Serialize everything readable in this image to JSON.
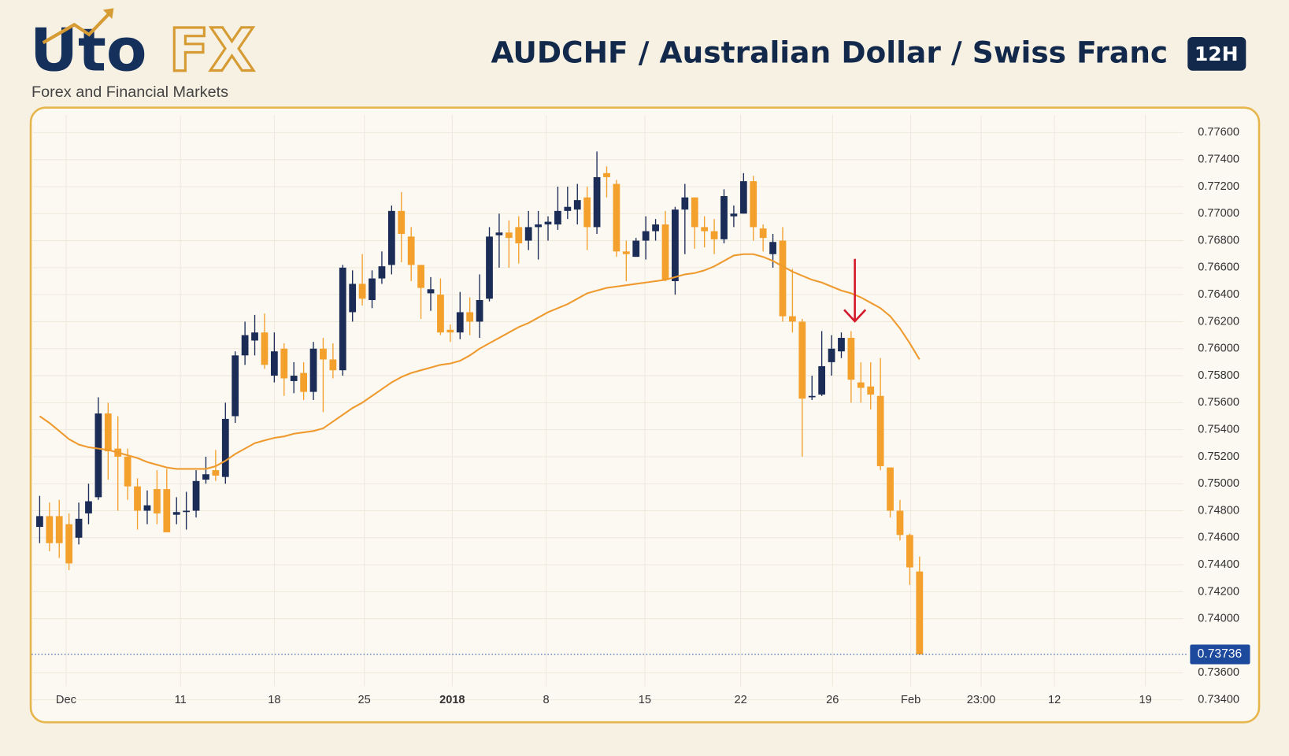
{
  "header": {
    "logo_left": "Uto",
    "logo_right": "FX",
    "tagline": "Forex and Financial Markets"
  },
  "chart_data": {
    "type": "candlestick",
    "title": "AUDCHF / Australian Dollar / Swiss Franc",
    "timeframe": "12H",
    "up_color": "#1b2d57",
    "down_color": "#f3a02c",
    "grid": true,
    "open": [
      0.7468,
      0.7476,
      0.7476,
      0.747,
      0.746,
      0.7478,
      0.749,
      0.7552,
      0.7526,
      0.752,
      0.7498,
      0.748,
      0.7496,
      0.7496,
      0.7477,
      0.7479,
      0.748,
      0.7503,
      0.751,
      0.7505,
      0.755,
      0.7595,
      0.7606,
      0.7612,
      0.758,
      0.76,
      0.7576,
      0.7582,
      0.7568,
      0.76,
      0.7592,
      0.7584,
      0.7627,
      0.7648,
      0.7636,
      0.7652,
      0.7662,
      0.7702,
      0.7683,
      0.7662,
      0.7641,
      0.764,
      0.7614,
      0.7612,
      0.7627,
      0.762,
      0.7637,
      0.7684,
      0.7686,
      0.769,
      0.768,
      0.769,
      0.7692,
      0.7692,
      0.7702,
      0.7703,
      0.7712,
      0.769,
      0.773,
      0.7722,
      0.7672,
      0.7668,
      0.768,
      0.7687,
      0.7692,
      0.765,
      0.7703,
      0.7712,
      0.769,
      0.7687,
      0.7681,
      0.7698,
      0.77,
      0.7724,
      0.7689,
      0.767,
      0.768,
      0.7624,
      0.762,
      0.7564,
      0.7566,
      0.759,
      0.7598,
      0.7608,
      0.7575,
      0.7572,
      0.7565,
      0.7512,
      0.748,
      0.7462,
      0.7435
    ],
    "high": [
      0.7491,
      0.7486,
      0.7488,
      0.7478,
      0.7486,
      0.75,
      0.7564,
      0.756,
      0.755,
      0.7526,
      0.7504,
      0.7495,
      0.751,
      0.7511,
      0.749,
      0.7494,
      0.751,
      0.752,
      0.7525,
      0.756,
      0.7598,
      0.762,
      0.7625,
      0.7626,
      0.7612,
      0.7604,
      0.759,
      0.759,
      0.7605,
      0.7608,
      0.7604,
      0.7662,
      0.7658,
      0.767,
      0.7658,
      0.7672,
      0.7706,
      0.7716,
      0.769,
      0.7662,
      0.7653,
      0.7652,
      0.7618,
      0.7642,
      0.7638,
      0.7655,
      0.769,
      0.77,
      0.7695,
      0.7698,
      0.7702,
      0.7702,
      0.7698,
      0.772,
      0.772,
      0.7722,
      0.772,
      0.7746,
      0.7735,
      0.7725,
      0.768,
      0.7682,
      0.7698,
      0.7696,
      0.7702,
      0.7705,
      0.7722,
      0.7712,
      0.7698,
      0.7696,
      0.7718,
      0.7706,
      0.773,
      0.7728,
      0.7692,
      0.7685,
      0.769,
      0.7659,
      0.7622,
      0.758,
      0.7613,
      0.761,
      0.7612,
      0.7613,
      0.759,
      0.759,
      0.7593,
      0.7512,
      0.7488,
      0.7463,
      0.7446
    ],
    "low": [
      0.7456,
      0.745,
      0.7445,
      0.7436,
      0.7455,
      0.747,
      0.7488,
      0.7503,
      0.748,
      0.7488,
      0.7466,
      0.747,
      0.747,
      0.7464,
      0.747,
      0.7466,
      0.7475,
      0.75,
      0.7502,
      0.75,
      0.7545,
      0.7588,
      0.7595,
      0.7585,
      0.7575,
      0.7565,
      0.7567,
      0.7562,
      0.7562,
      0.7553,
      0.7578,
      0.758,
      0.762,
      0.7632,
      0.763,
      0.7648,
      0.7655,
      0.7664,
      0.765,
      0.7622,
      0.7628,
      0.761,
      0.7605,
      0.7607,
      0.761,
      0.7608,
      0.7635,
      0.766,
      0.766,
      0.7663,
      0.7673,
      0.7666,
      0.768,
      0.7688,
      0.7696,
      0.7692,
      0.7673,
      0.7685,
      0.7712,
      0.7668,
      0.765,
      0.7668,
      0.7666,
      0.768,
      0.765,
      0.764,
      0.767,
      0.7674,
      0.7675,
      0.767,
      0.7678,
      0.769,
      0.77,
      0.768,
      0.7672,
      0.766,
      0.762,
      0.7612,
      0.752,
      0.7562,
      0.7565,
      0.758,
      0.7593,
      0.756,
      0.756,
      0.7555,
      0.751,
      0.7475,
      0.7458,
      0.7425,
      0.73736
    ],
    "close": [
      0.7476,
      0.7456,
      0.7456,
      0.7441,
      0.7474,
      0.7487,
      0.7552,
      0.7524,
      0.752,
      0.7498,
      0.748,
      0.7484,
      0.7478,
      0.7464,
      0.7479,
      0.748,
      0.7502,
      0.7507,
      0.7506,
      0.7548,
      0.7595,
      0.761,
      0.7612,
      0.7588,
      0.7598,
      0.7578,
      0.758,
      0.7568,
      0.76,
      0.7592,
      0.7584,
      0.766,
      0.7648,
      0.7637,
      0.7652,
      0.7661,
      0.7702,
      0.7685,
      0.7662,
      0.7645,
      0.7644,
      0.7612,
      0.7612,
      0.7627,
      0.762,
      0.7636,
      0.7683,
      0.7686,
      0.7682,
      0.7678,
      0.769,
      0.7692,
      0.7694,
      0.7702,
      0.7705,
      0.771,
      0.769,
      0.7727,
      0.7727,
      0.7672,
      0.767,
      0.768,
      0.7687,
      0.7692,
      0.7651,
      0.7703,
      0.7712,
      0.769,
      0.7687,
      0.7681,
      0.7713,
      0.77,
      0.7724,
      0.769,
      0.7682,
      0.7679,
      0.7624,
      0.762,
      0.7563,
      0.7565,
      0.7587,
      0.76,
      0.7608,
      0.7577,
      0.7571,
      0.7566,
      0.7513,
      0.748,
      0.7462,
      0.7438,
      0.73736
    ],
    "moving_average": {
      "color": "#ee9a2e",
      "values": [
        0.755,
        0.7545,
        0.7539,
        0.7533,
        0.7529,
        0.7527,
        0.7526,
        0.7525,
        0.7523,
        0.7521,
        0.7519,
        0.7516,
        0.7514,
        0.7512,
        0.7511,
        0.7511,
        0.7511,
        0.7511,
        0.7513,
        0.7517,
        0.7522,
        0.7526,
        0.753,
        0.7532,
        0.7534,
        0.7535,
        0.7537,
        0.7538,
        0.7539,
        0.7541,
        0.7546,
        0.7551,
        0.7556,
        0.756,
        0.7565,
        0.757,
        0.7575,
        0.7579,
        0.7582,
        0.7584,
        0.7586,
        0.7588,
        0.7589,
        0.7591,
        0.7595,
        0.76,
        0.7604,
        0.7608,
        0.7612,
        0.7616,
        0.7619,
        0.7623,
        0.7627,
        0.763,
        0.7633,
        0.7637,
        0.7641,
        0.7643,
        0.7645,
        0.7646,
        0.7647,
        0.7648,
        0.7649,
        0.765,
        0.7651,
        0.7653,
        0.7655,
        0.7656,
        0.7658,
        0.7661,
        0.7665,
        0.7669,
        0.767,
        0.767,
        0.7668,
        0.7665,
        0.7661,
        0.7657,
        0.7654,
        0.7651,
        0.7649,
        0.7646,
        0.7643,
        0.7641,
        0.7638,
        0.7634,
        0.763,
        0.7624,
        0.7615,
        0.7604,
        0.7592
      ]
    },
    "xlim": [
      -1,
      117
    ],
    "xticks": [
      {
        "value": 2.7,
        "label": "Dec"
      },
      {
        "value": 14.4,
        "label": "11"
      },
      {
        "value": 24.0,
        "label": "18"
      },
      {
        "value": 33.2,
        "label": "25"
      },
      {
        "value": 42.2,
        "label": "2018",
        "bold": true
      },
      {
        "value": 51.8,
        "label": "8"
      },
      {
        "value": 61.9,
        "label": "15"
      },
      {
        "value": 71.7,
        "label": "22"
      },
      {
        "value": 81.1,
        "label": "26"
      },
      {
        "value": 89.1,
        "label": "Feb"
      },
      {
        "value": 96.3,
        "label": "23:00"
      },
      {
        "value": 103.8,
        "label": "12"
      },
      {
        "value": 113.1,
        "label": "19"
      }
    ],
    "ylim": [
      0.733,
      0.7773
    ],
    "yticks": [
      {
        "value": 0.776,
        "label": "0.77600"
      },
      {
        "value": 0.774,
        "label": "0.77400"
      },
      {
        "value": 0.772,
        "label": "0.77200"
      },
      {
        "value": 0.77,
        "label": "0.77000"
      },
      {
        "value": 0.768,
        "label": "0.76800"
      },
      {
        "value": 0.766,
        "label": "0.76600"
      },
      {
        "value": 0.764,
        "label": "0.76400"
      },
      {
        "value": 0.762,
        "label": "0.76200"
      },
      {
        "value": 0.76,
        "label": "0.76000"
      },
      {
        "value": 0.758,
        "label": "0.75800"
      },
      {
        "value": 0.756,
        "label": "0.75600"
      },
      {
        "value": 0.754,
        "label": "0.75400"
      },
      {
        "value": 0.752,
        "label": "0.75200"
      },
      {
        "value": 0.75,
        "label": "0.75000"
      },
      {
        "value": 0.748,
        "label": "0.74800"
      },
      {
        "value": 0.746,
        "label": "0.74600"
      },
      {
        "value": 0.744,
        "label": "0.74400"
      },
      {
        "value": 0.742,
        "label": "0.74200"
      },
      {
        "value": 0.74,
        "label": "0.74000"
      },
      {
        "value": 0.736,
        "label": "0.73600"
      },
      {
        "value": 0.734,
        "label": "0.73400"
      }
    ]
  }
}
